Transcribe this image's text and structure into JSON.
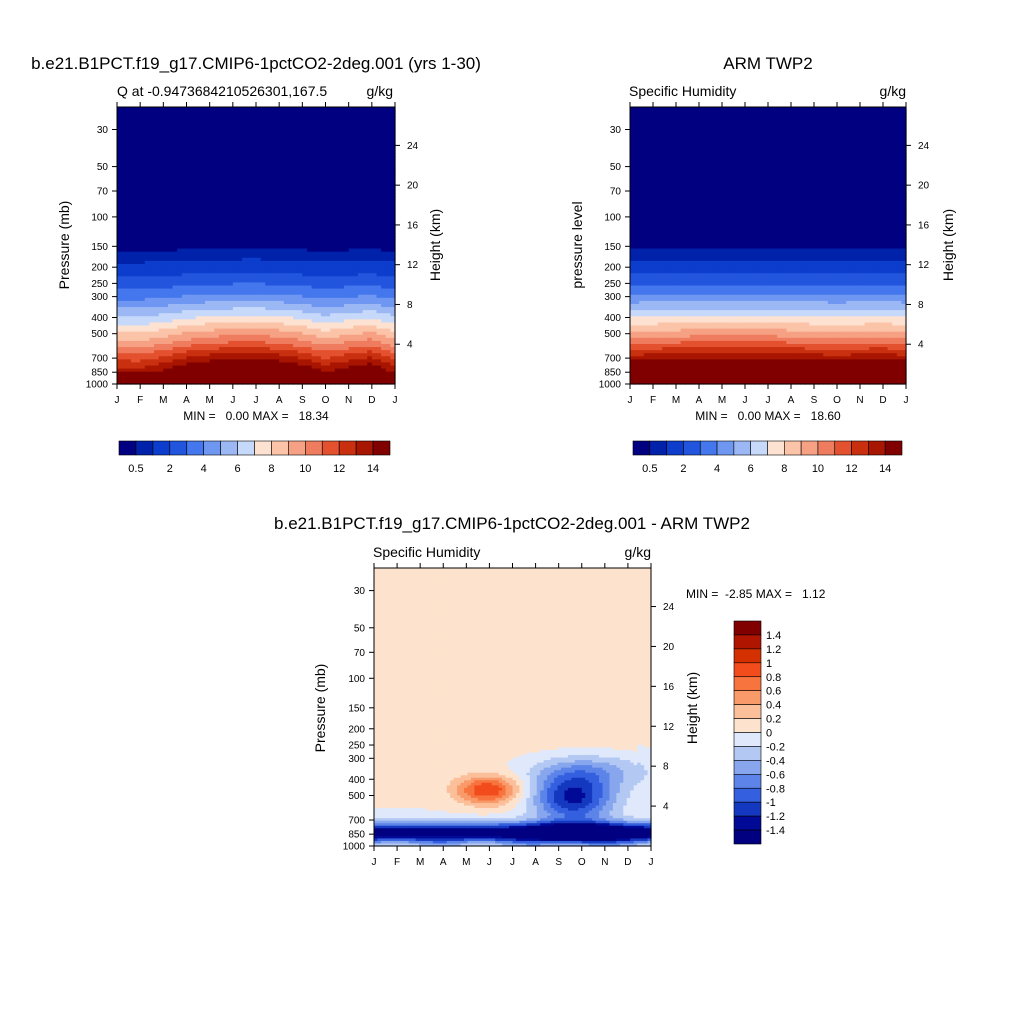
{
  "chart_data": [
    {
      "type": "heatmap",
      "title": "b.e21.B1PCT.f19_g17.CMIP6-1pctCO2-2deg.001 (yrs 1-30)",
      "left_label": "Q at -0.9473684210526301,167.5",
      "right_label": "g/kg",
      "ylabel": "Pressure (mb)",
      "y2label": "Height (km)",
      "x_ticks": [
        "J",
        "F",
        "M",
        "A",
        "M",
        "J",
        "J",
        "A",
        "S",
        "O",
        "N",
        "D",
        "J"
      ],
      "y_ticks": [
        30,
        50,
        70,
        100,
        150,
        200,
        250,
        300,
        400,
        500,
        700,
        850,
        1000
      ],
      "y2_ticks": [
        24,
        20,
        16,
        12,
        8,
        4
      ],
      "ylim": [
        1000,
        22
      ],
      "stats": "MIN =   0.00 MAX =   18.34",
      "colorbar": {
        "labels": [
          "0.5",
          "2",
          "4",
          "6",
          "8",
          "10",
          "12",
          "14"
        ],
        "colors": [
          "#000080",
          "#0022aa",
          "#0d3dcc",
          "#2255dd",
          "#4477ee",
          "#6f97f2",
          "#9bb8f5",
          "#c6d9fa",
          "#fde2d2",
          "#fbc4a8",
          "#f6a184",
          "#ef7c5e",
          "#e3512f",
          "#c9300f",
          "#a81500",
          "#800000"
        ]
      },
      "profile": [
        18.34,
        16.3,
        14.6,
        12.9,
        11.1,
        9.6,
        8.1,
        6.7,
        5.3,
        4.0,
        3.0,
        2.1,
        1.3,
        0.7,
        0.35,
        0.15,
        0.05,
        0.0
      ],
      "monthly_factor": [
        0.86,
        0.85,
        0.9,
        0.96,
        1.0,
        1.02,
        1.03,
        1.0,
        0.95,
        0.88,
        0.93,
        0.97,
        0.86
      ]
    },
    {
      "type": "heatmap",
      "title": "ARM TWP2",
      "left_label": "Specific Humidity",
      "right_label": "g/kg",
      "ylabel": "pressure level",
      "y2label": "Height (km)",
      "x_ticks": [
        "J",
        "F",
        "M",
        "A",
        "M",
        "J",
        "J",
        "A",
        "S",
        "O",
        "N",
        "D",
        "J"
      ],
      "y_ticks": [
        30,
        50,
        70,
        100,
        150,
        200,
        250,
        300,
        400,
        500,
        700,
        850,
        1000
      ],
      "y2_ticks": [
        24,
        20,
        16,
        12,
        8,
        4
      ],
      "ylim": [
        1000,
        22
      ],
      "stats": "MIN =   0.00 MAX =   18.60",
      "colorbar": {
        "labels": [
          "0.5",
          "2",
          "4",
          "6",
          "8",
          "10",
          "12",
          "14"
        ],
        "colors": [
          "#000080",
          "#0022aa",
          "#0d3dcc",
          "#2255dd",
          "#4477ee",
          "#6f97f2",
          "#9bb8f5",
          "#c6d9fa",
          "#fde2d2",
          "#fbc4a8",
          "#f6a184",
          "#ef7c5e",
          "#e3512f",
          "#c9300f",
          "#a81500",
          "#800000"
        ]
      },
      "profile": [
        18.6,
        16.8,
        15.0,
        13.2,
        11.4,
        9.7,
        8.2,
        6.8,
        5.4,
        4.1,
        3.0,
        2.1,
        1.3,
        0.7,
        0.35,
        0.15,
        0.05,
        0.0
      ],
      "monthly_factor": [
        0.97,
        0.98,
        0.99,
        1.0,
        1.0,
        1.0,
        1.0,
        0.99,
        0.98,
        0.97,
        0.98,
        0.99,
        0.97
      ]
    },
    {
      "type": "heatmap",
      "title": "b.e21.B1PCT.f19_g17.CMIP6-1pctCO2-2deg.001 - ARM TWP2",
      "left_label": "Specific Humidity",
      "right_label": "g/kg",
      "ylabel": "Pressure (mb)",
      "y2label": "Height (km)",
      "x_ticks": [
        "J",
        "F",
        "M",
        "A",
        "M",
        "J",
        "J",
        "A",
        "S",
        "O",
        "N",
        "D",
        "J"
      ],
      "y_ticks": [
        30,
        50,
        70,
        100,
        150,
        200,
        250,
        300,
        400,
        500,
        700,
        850,
        1000
      ],
      "y2_ticks": [
        24,
        20,
        16,
        12,
        8,
        4
      ],
      "ylim": [
        1000,
        22
      ],
      "stats": "MIN =  -2.85 MAX =   1.12",
      "colorbar": {
        "labels": [
          "1.4",
          "1.2",
          "1",
          "0.8",
          "0.6",
          "0.4",
          "0.2",
          "0",
          "-0.2",
          "-0.4",
          "-0.6",
          "-0.8",
          "-1",
          "-1.2",
          "-1.4"
        ],
        "colors": [
          "#800000",
          "#b01500",
          "#d53000",
          "#f34c1c",
          "#f8743f",
          "#f99a6b",
          "#fbbf9a",
          "#fde3cd",
          "#dfe9fb",
          "#b3c9f3",
          "#87a6ee",
          "#5d84e8",
          "#3460df",
          "#1438c0",
          "#000a96",
          "#000080"
        ]
      }
    }
  ]
}
